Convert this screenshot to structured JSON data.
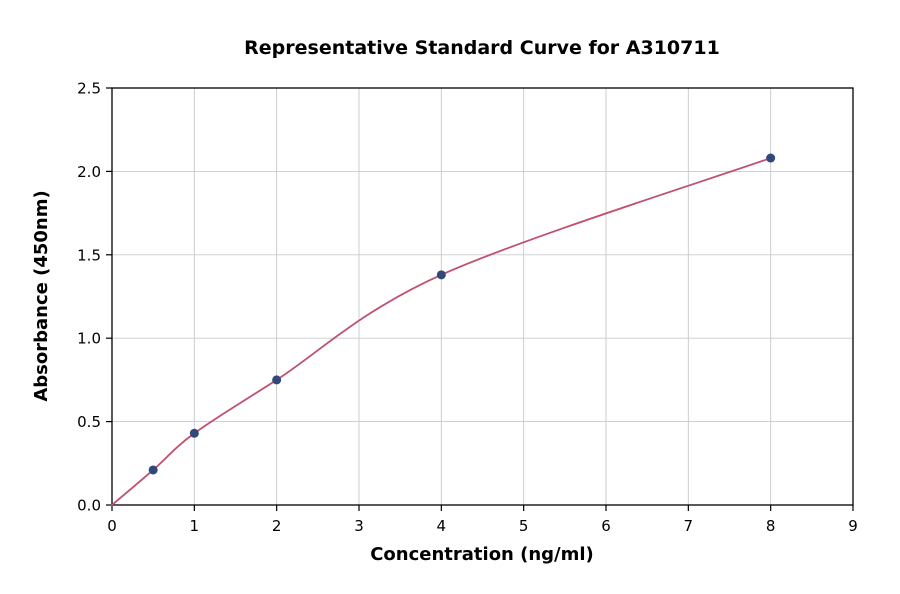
{
  "chart_data": {
    "type": "scatter",
    "title": "Representative Standard Curve for A310711",
    "xlabel": "Concentration (ng/ml)",
    "ylabel": "Absorbance (450nm)",
    "xlim": [
      0,
      9
    ],
    "ylim": [
      0,
      2.5
    ],
    "x_ticks": [
      0,
      1,
      2,
      3,
      4,
      5,
      6,
      7,
      8,
      9
    ],
    "y_ticks": [
      0.0,
      0.5,
      1.0,
      1.5,
      2.0,
      2.5
    ],
    "grid": true,
    "legend": "none",
    "curve_start": {
      "x": 0,
      "y": 0
    },
    "points": {
      "x": [
        0.5,
        1,
        2,
        4,
        8
      ],
      "y": [
        0.21,
        0.43,
        0.75,
        1.38,
        2.08
      ]
    },
    "colors": {
      "line": "#c0506e",
      "marker": "#31487a",
      "grid": "#c9c9c9",
      "border": "#000000",
      "background": "#ffffff"
    }
  }
}
